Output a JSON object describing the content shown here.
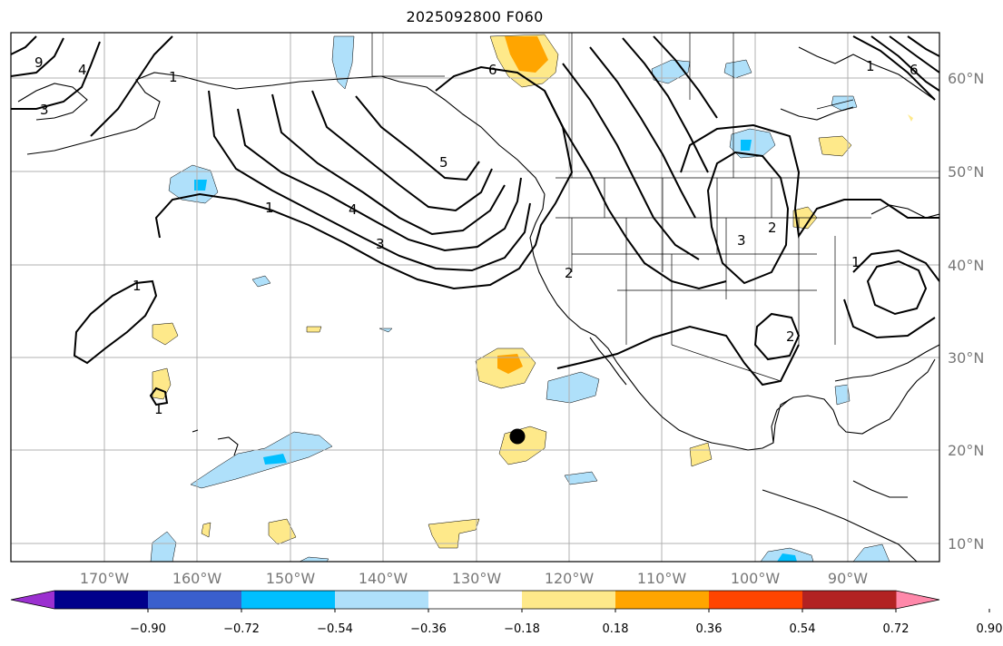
{
  "title": "2025092800 F060",
  "lat_labels": [
    "60°N",
    "50°N",
    "40°N",
    "30°N",
    "20°N",
    "10°N"
  ],
  "lon_labels": [
    "170°W",
    "160°W",
    "150°W",
    "140°W",
    "130°W",
    "120°W",
    "110°W",
    "100°W",
    "90°W"
  ],
  "colorbar": {
    "tick_labels": [
      "−0.90",
      "−0.72",
      "−0.54",
      "−0.36",
      "−0.18",
      "0.18",
      "0.36",
      "0.54",
      "0.72",
      "0.90"
    ],
    "colors": [
      "#9b30d0",
      "#00008b",
      "#3a5fcd",
      "#00bfff",
      "#afe0fa",
      "#ffffff",
      "#fee98a",
      "#ffa500",
      "#ff4500",
      "#b22222",
      "#ff88aa"
    ]
  },
  "contour_labels": [
    "9",
    "4",
    "3",
    "1",
    "1",
    "1",
    "4",
    "3",
    "5",
    "6",
    "2",
    "3",
    "2",
    "1",
    "2",
    "1",
    "6",
    "1"
  ],
  "marker": "storm-center-dot"
}
